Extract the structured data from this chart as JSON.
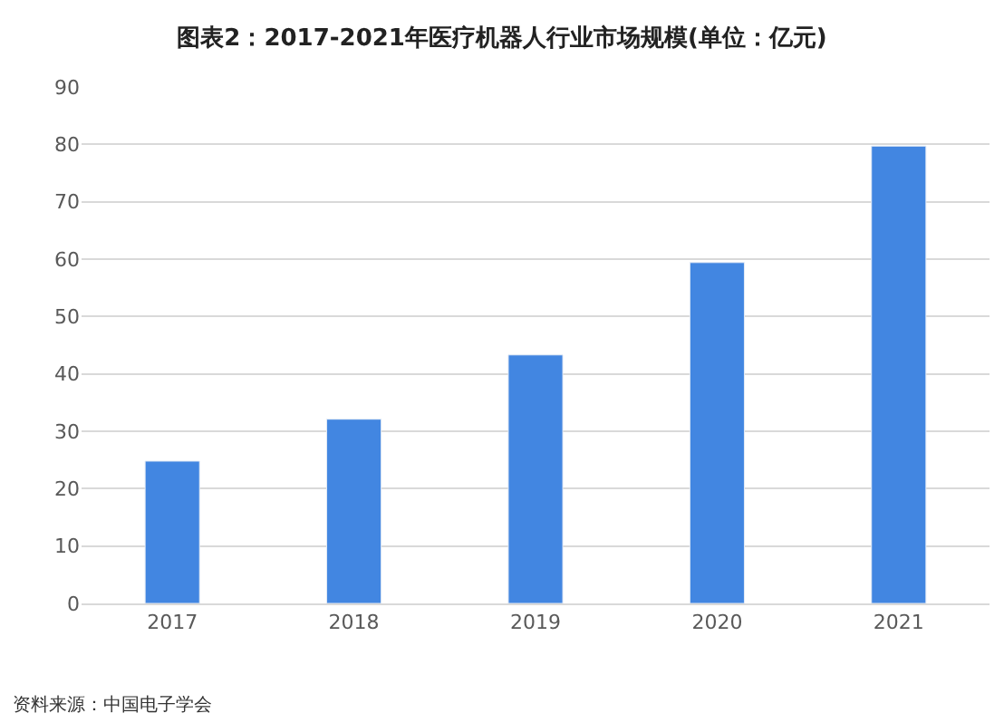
{
  "chart_data": {
    "type": "bar",
    "title": "图表2：2017-2021年医疗机器人行业市场规模(单位：亿元)",
    "categories": [
      "2017",
      "2018",
      "2019",
      "2020",
      "2021"
    ],
    "values": [
      24.8,
      32.1,
      43.3,
      59.4,
      79.7
    ],
    "color": "#4286e1",
    "ylim": [
      0,
      90
    ],
    "yticks": [
      0,
      10,
      20,
      30,
      40,
      50,
      60,
      70,
      80,
      90
    ],
    "grid": "y",
    "annotations": [
      "资料来源：中国电子学会"
    ]
  }
}
